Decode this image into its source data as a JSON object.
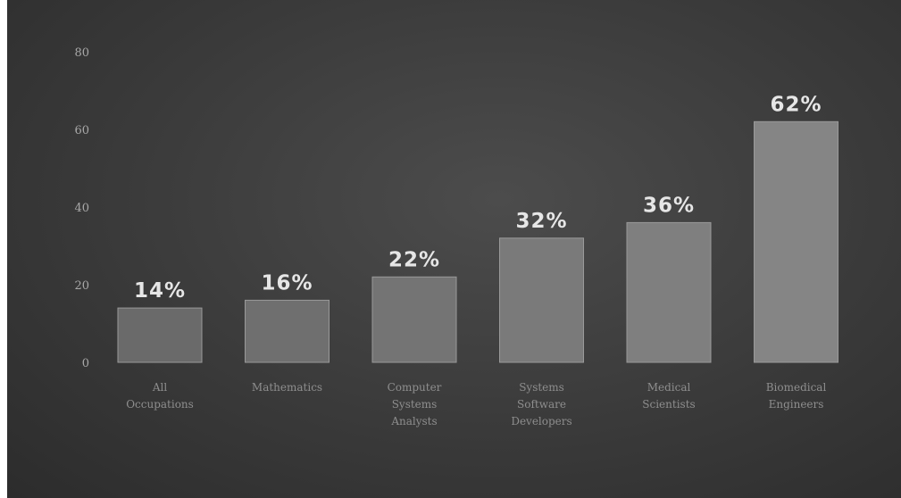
{
  "chart_data": {
    "type": "bar",
    "title": "",
    "xlabel": "",
    "ylabel": "",
    "ylim": [
      0,
      80
    ],
    "yticks": [
      0,
      20,
      40,
      60,
      80
    ],
    "grid": false,
    "categories": [
      [
        "All",
        "Occupations"
      ],
      [
        "Mathematics"
      ],
      [
        "Computer",
        "Systems",
        "Analysts"
      ],
      [
        "Systems",
        "Software",
        "Developers"
      ],
      [
        "Medical",
        "Scientists"
      ],
      [
        "Biomedical",
        "Engineers"
      ]
    ],
    "values": [
      14,
      16,
      22,
      32,
      36,
      62
    ],
    "value_labels": [
      "14%",
      "16%",
      "22%",
      "32%",
      "36%",
      "62%"
    ],
    "colors": [
      "#6a6a6a",
      "#6f6f6f",
      "#747474",
      "#7a7a7a",
      "#7f7f7f",
      "#858585"
    ]
  }
}
